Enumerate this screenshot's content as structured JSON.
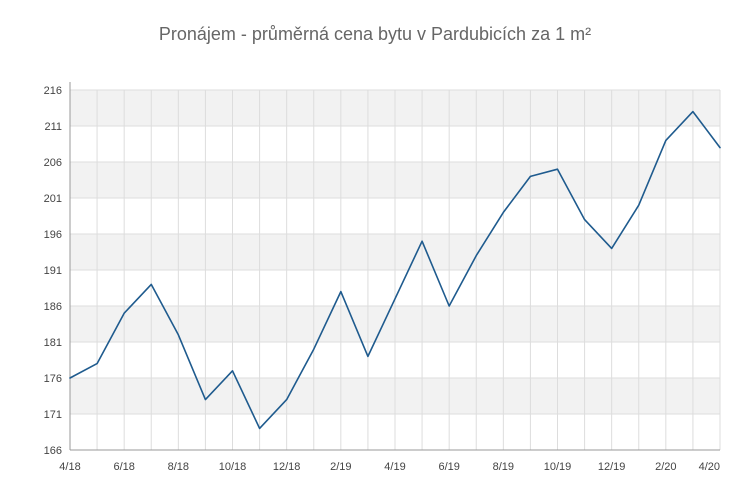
{
  "chart_data": {
    "type": "line",
    "title": "Pronájem - průměrná cena bytu v Pardubicích za 1 m²",
    "xlabel": "",
    "ylabel": "",
    "ylim": [
      166,
      216
    ],
    "yticks": [
      166,
      171,
      176,
      181,
      186,
      191,
      196,
      201,
      206,
      211,
      216
    ],
    "x": [
      "4/18",
      "5/18",
      "6/18",
      "7/18",
      "8/18",
      "9/18",
      "10/18",
      "11/18",
      "12/18",
      "1/19",
      "2/19",
      "3/19",
      "4/19",
      "5/19",
      "6/19",
      "7/19",
      "8/19",
      "9/19",
      "10/19",
      "11/19",
      "12/19",
      "1/20",
      "2/20",
      "3/20",
      "4/20"
    ],
    "xtick_labels": [
      "4/18",
      "6/18",
      "8/18",
      "10/18",
      "12/18",
      "2/19",
      "4/19",
      "6/19",
      "8/19",
      "10/19",
      "12/19",
      "2/20",
      "4/20"
    ],
    "series": [
      {
        "values": [
          176,
          178,
          185,
          189,
          182,
          173,
          177,
          169,
          173,
          180,
          188,
          179,
          187,
          195,
          186,
          193,
          199,
          204,
          205,
          198,
          194,
          200,
          209,
          213,
          208
        ]
      }
    ],
    "grid": true,
    "colors": {
      "line": "#1f5b8e",
      "band": "#f2f2f2",
      "grid": "#dddddd",
      "axis": "#999999"
    }
  }
}
